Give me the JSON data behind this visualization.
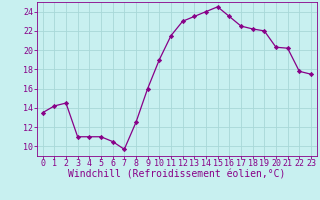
{
  "x": [
    0,
    1,
    2,
    3,
    4,
    5,
    6,
    7,
    8,
    9,
    10,
    11,
    12,
    13,
    14,
    15,
    16,
    17,
    18,
    19,
    20,
    21,
    22,
    23
  ],
  "y": [
    13.5,
    14.2,
    14.5,
    11.0,
    11.0,
    11.0,
    10.5,
    9.7,
    12.5,
    16.0,
    19.0,
    21.5,
    23.0,
    23.5,
    24.0,
    24.5,
    23.5,
    22.5,
    22.2,
    22.0,
    20.3,
    20.2,
    17.8,
    17.5
  ],
  "line_color": "#880088",
  "marker": "D",
  "marker_size": 2.2,
  "bg_color": "#c8f0f0",
  "grid_color": "#a8d8d8",
  "xlabel": "Windchill (Refroidissement éolien,°C)",
  "ylim": [
    9,
    25
  ],
  "xlim": [
    -0.5,
    23.5
  ],
  "yticks": [
    10,
    12,
    14,
    16,
    18,
    20,
    22,
    24
  ],
  "xticks": [
    0,
    1,
    2,
    3,
    4,
    5,
    6,
    7,
    8,
    9,
    10,
    11,
    12,
    13,
    14,
    15,
    16,
    17,
    18,
    19,
    20,
    21,
    22,
    23
  ],
  "xlabel_color": "#880088",
  "xlabel_fontsize": 7.0,
  "tick_color": "#880088",
  "tick_fontsize": 6.0,
  "spine_color": "#880088",
  "linewidth": 0.9
}
